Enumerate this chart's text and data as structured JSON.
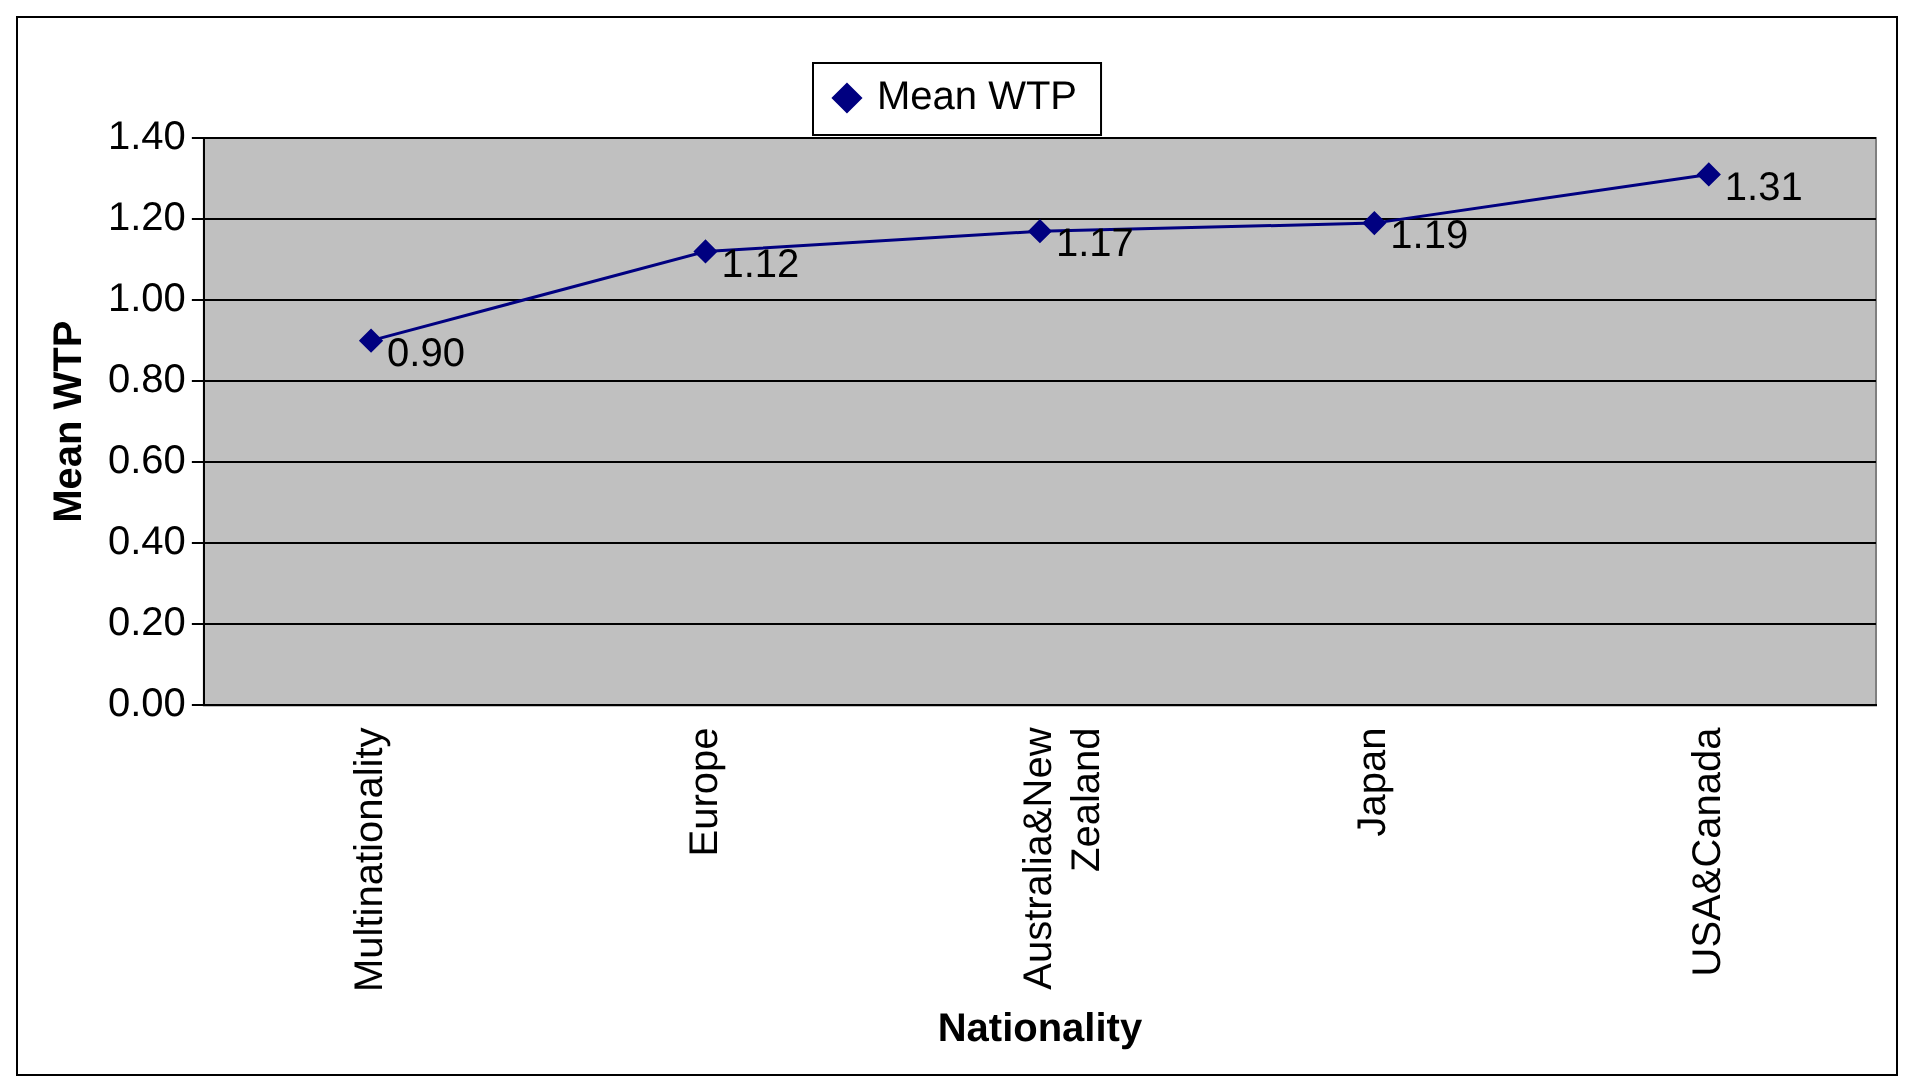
{
  "chart_data": {
    "type": "line",
    "xlabel": "Nationality",
    "ylabel": "Mean WTP",
    "categories": [
      "Multinationality",
      "Europe",
      "Australia&New Zealand",
      "Japan",
      "USA&Canada"
    ],
    "series": [
      {
        "name": "Mean WTP",
        "color": "#000080",
        "values": [
          0.9,
          1.12,
          1.17,
          1.19,
          1.31
        ],
        "value_labels": [
          "0.90",
          "1.12",
          "1.17",
          "1.19",
          "1.31"
        ]
      }
    ],
    "ylim": [
      0,
      1.4
    ],
    "yticks": [
      {
        "value": 0,
        "label": "0.00"
      },
      {
        "value": 0.2,
        "label": "0.20"
      },
      {
        "value": 0.4,
        "label": "0.40"
      },
      {
        "value": 0.6,
        "label": "0.60"
      },
      {
        "value": 0.8,
        "label": "0.80"
      },
      {
        "value": 1.0,
        "label": "1.00"
      },
      {
        "value": 1.2,
        "label": "1.20"
      },
      {
        "value": 1.4,
        "label": "1.40"
      }
    ],
    "grid": "y",
    "legend": "top",
    "marker": "diamond",
    "line_style": "solid"
  }
}
